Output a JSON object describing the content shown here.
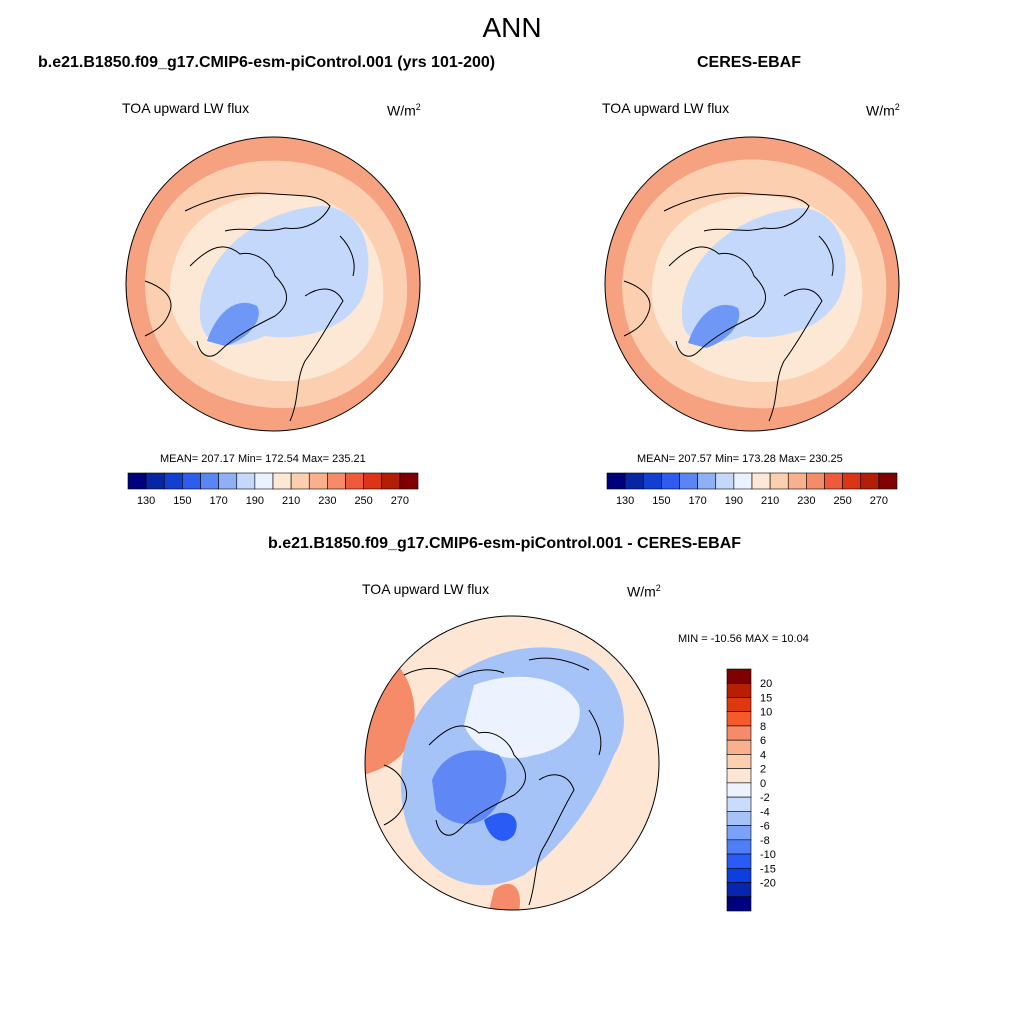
{
  "figure": {
    "title": "ANN"
  },
  "panels": [
    {
      "id": "model",
      "title": "b.e21.B1850.f09_g17.CMIP6-esm-piControl.001 (yrs 101-200)",
      "variable": "TOA upward LW flux",
      "units_base": "W/m",
      "units_exp": "2",
      "stats": "MEAN= 207.17  Min= 172.54  Max= 235.21"
    },
    {
      "id": "obs",
      "title": "CERES-EBAF",
      "variable": "TOA upward LW flux",
      "units_base": "W/m",
      "units_exp": "2",
      "stats": "MEAN= 207.57  Min= 173.28  Max= 230.25"
    },
    {
      "id": "diff",
      "title": "b.e21.B1850.f09_g17.CMIP6-esm-piControl.001 - CERES-EBAF",
      "variable": "TOA upward LW flux",
      "units_base": "W/m",
      "units_exp": "2",
      "stats": "MIN = -10.56 MAX =  10.04"
    }
  ],
  "colorbars": {
    "absolute": {
      "orientation": "horizontal",
      "colors": [
        "#00007f",
        "#0626a6",
        "#123fd0",
        "#2e5cf0",
        "#5a85f5",
        "#8fb0f7",
        "#c3d8fa",
        "#eaf2fd",
        "#fde8d6",
        "#fbcfb0",
        "#f8b08d",
        "#f58b68",
        "#ef5a3c",
        "#db3416",
        "#b21f06",
        "#800000"
      ],
      "tick_labels": [
        "130",
        "150",
        "170",
        "190",
        "210",
        "230",
        "250",
        "270"
      ]
    },
    "difference": {
      "orientation": "vertical",
      "colors": [
        "#00007f",
        "#0625b0",
        "#0d3fe0",
        "#2a5cf5",
        "#4f7ff6",
        "#7aa2f7",
        "#a6c3f8",
        "#cadcfb",
        "#edf3fe",
        "#fde6d3",
        "#fbcfb0",
        "#f8b08d",
        "#f58b68",
        "#f65a2a",
        "#e0380e",
        "#b81e02",
        "#800000"
      ],
      "tick_labels": [
        "20",
        "15",
        "10",
        "8",
        "6",
        "4",
        "2",
        "0",
        "-2",
        "-4",
        "-6",
        "-8",
        "-10",
        "-15",
        "-20"
      ]
    }
  },
  "colors": {
    "land_outline": "#000000",
    "model_field": {
      "warm_outer": "#f6a281",
      "mid": "#fbcfb0",
      "light": "#fde8d6",
      "cool": "#c3d8fa",
      "cold": "#6f98f6"
    },
    "diff_field": {
      "warm": "#f58b68",
      "light_warm": "#fde6d3",
      "neutral": "#edf3fe",
      "cool": "#a6c3f8",
      "cold": "#2a5cf5"
    }
  }
}
